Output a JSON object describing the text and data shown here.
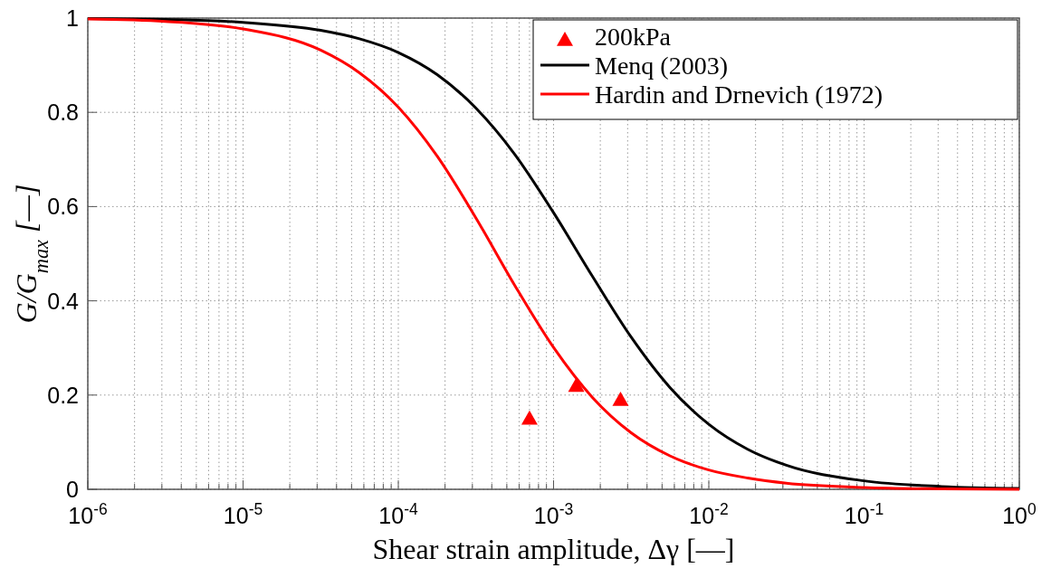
{
  "chart_data": {
    "type": "line",
    "xlabel": "Shear strain amplitude, Δγ [—]",
    "ylabel": "G/G$_{max}$ [—]",
    "log": "x",
    "grid": true,
    "legend": "top right",
    "line_style": "solid",
    "marker": "none",
    "xlim": [
      1e-06,
      1
    ],
    "ylim": [
      0,
      1
    ],
    "xticks": [
      {
        "value": 1e-06,
        "label": "10$^{-6}$"
      },
      {
        "value": 2e-06,
        "label": null
      },
      {
        "value": 3e-06,
        "label": null
      },
      {
        "value": 4e-06,
        "label": null
      },
      {
        "value": 5e-06,
        "label": null
      },
      {
        "value": 6e-06,
        "label": null
      },
      {
        "value": 7e-06,
        "label": null
      },
      {
        "value": 8e-06,
        "label": null
      },
      {
        "value": 9e-06,
        "label": null
      },
      {
        "value": 1e-05,
        "label": "10$^{-5}$"
      },
      {
        "value": 2e-05,
        "label": null
      },
      {
        "value": 3e-05,
        "label": null
      },
      {
        "value": 4e-05,
        "label": null
      },
      {
        "value": 5e-05,
        "label": null
      },
      {
        "value": 6e-05,
        "label": null
      },
      {
        "value": 7e-05,
        "label": null
      },
      {
        "value": 8e-05,
        "label": null
      },
      {
        "value": 9e-05,
        "label": null
      },
      {
        "value": 0.0001,
        "label": "10$^{-4}$"
      },
      {
        "value": 0.0002,
        "label": null
      },
      {
        "value": 0.0003,
        "label": null
      },
      {
        "value": 0.0004,
        "label": null
      },
      {
        "value": 0.0005,
        "label": null
      },
      {
        "value": 0.0006,
        "label": null
      },
      {
        "value": 0.0007,
        "label": null
      },
      {
        "value": 0.0008,
        "label": null
      },
      {
        "value": 0.0009,
        "label": null
      },
      {
        "value": 0.001,
        "label": "10$^{-3}$"
      },
      {
        "value": 0.002,
        "label": null
      },
      {
        "value": 0.003,
        "label": null
      },
      {
        "value": 0.004,
        "label": null
      },
      {
        "value": 0.005,
        "label": null
      },
      {
        "value": 0.006,
        "label": null
      },
      {
        "value": 0.007,
        "label": null
      },
      {
        "value": 0.008,
        "label": null
      },
      {
        "value": 0.009,
        "label": null
      },
      {
        "value": 0.01,
        "label": "10$^{-2}$"
      },
      {
        "value": 0.02,
        "label": null
      },
      {
        "value": 0.03,
        "label": null
      },
      {
        "value": 0.04,
        "label": null
      },
      {
        "value": 0.05,
        "label": null
      },
      {
        "value": 0.06,
        "label": null
      },
      {
        "value": 0.07,
        "label": null
      },
      {
        "value": 0.08,
        "label": null
      },
      {
        "value": 0.09,
        "label": null
      },
      {
        "value": 0.1,
        "label": "10$^{-1}$"
      },
      {
        "value": 0.2,
        "label": null
      },
      {
        "value": 0.3,
        "label": null
      },
      {
        "value": 0.4,
        "label": null
      },
      {
        "value": 0.5,
        "label": null
      },
      {
        "value": 0.6,
        "label": null
      },
      {
        "value": 0.7,
        "label": null
      },
      {
        "value": 0.8,
        "label": null
      },
      {
        "value": 0.9,
        "label": null
      },
      {
        "value": 1,
        "label": "10$^{0}$"
      }
    ],
    "yticks": [
      0,
      0.2,
      0.4,
      0.6,
      0.8,
      1
    ],
    "series": [
      {
        "name": "200kPa",
        "type": "scatter",
        "marker": "triangle",
        "color": "#ff0000",
        "x": [
          0.0007,
          0.0014,
          0.0027
        ],
        "values": [
          0.15,
          0.22,
          0.19
        ]
      },
      {
        "name": "Menq (2003)",
        "color": "#000000",
        "x": [
          1e-06,
          3.16e-06,
          1e-05,
          3.16e-05,
          5.62e-05,
          0.0001,
          0.000178,
          0.000316,
          0.000562,
          0.001,
          0.00178,
          0.00316,
          0.00562,
          0.01,
          0.0178,
          0.0316,
          0.1,
          0.316,
          1
        ],
        "values": [
          0.999,
          0.997,
          0.991,
          0.974,
          0.956,
          0.927,
          0.88,
          0.809,
          0.711,
          0.587,
          0.452,
          0.323,
          0.216,
          0.138,
          0.085,
          0.051,
          0.018,
          0.006,
          0.002
        ]
      },
      {
        "name": "Hardin and Drnevich (1972)",
        "color": "#ff0000",
        "x": [
          1e-06,
          3.16e-06,
          1e-05,
          3.16e-05,
          5.62e-05,
          0.0001,
          0.000178,
          0.000316,
          0.000562,
          0.001,
          0.00178,
          0.00316,
          0.00562,
          0.01,
          0.0178,
          0.0316,
          0.1,
          0.316,
          1
        ],
        "values": [
          0.998,
          0.993,
          0.977,
          0.932,
          0.884,
          0.811,
          0.707,
          0.576,
          0.433,
          0.301,
          0.195,
          0.12,
          0.071,
          0.041,
          0.024,
          0.013,
          0.004,
          0.001,
          0
        ]
      }
    ]
  }
}
